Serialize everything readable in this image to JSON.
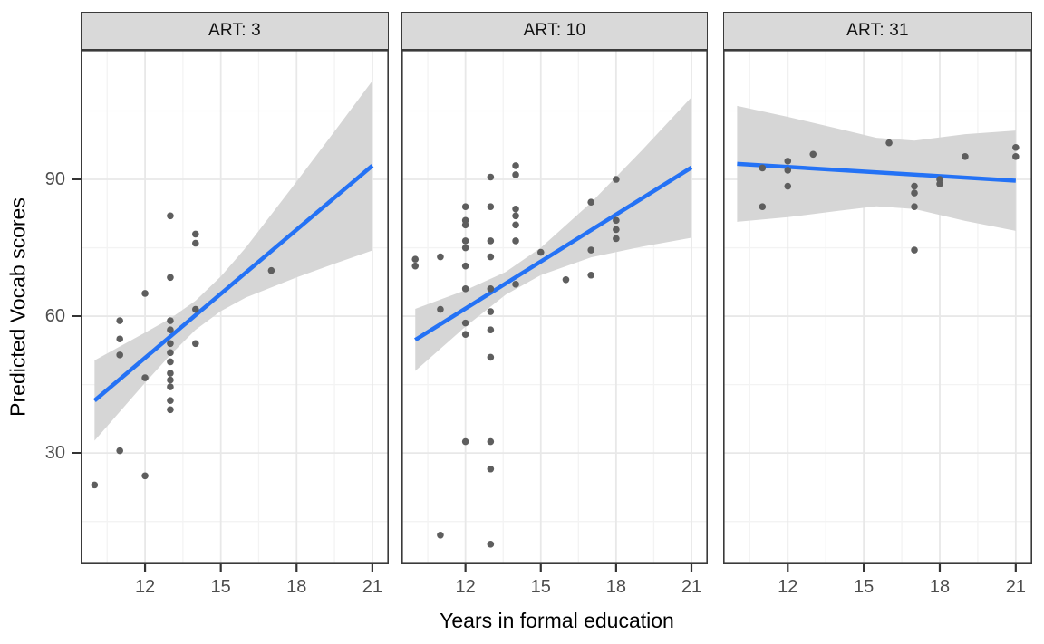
{
  "chart_data": {
    "type": "scatter",
    "subtype": "faceted scatter with linear smooth and confidence band (ggplot style)",
    "title": "",
    "xlabel": "Years in formal education",
    "ylabel": "Predicted Vocab scores",
    "facet_variable": "ART",
    "x_domain": [
      9.45,
      21.65
    ],
    "y_domain": [
      5.6,
      118.4
    ],
    "x_ticks": [
      12,
      15,
      18,
      21
    ],
    "x_minor_ticks": [
      10.5,
      13.5,
      16.5,
      19.5
    ],
    "y_ticks": [
      30,
      60,
      90
    ],
    "y_minor_ticks": [
      15,
      45,
      75,
      105
    ],
    "grid": true,
    "legend": "none",
    "colors": {
      "smooth_line": "#2472f5",
      "ci_band": "#d6d6d6",
      "points": "#5e5e5e",
      "strip_bg": "#d9d9d9",
      "grid_major": "#e8e8e8",
      "grid_minor": "#f3f3f3",
      "border": "#3a3a3a",
      "axis_tick": "#333333",
      "tick_label": "#4d4d4d",
      "title_text": "#000000"
    },
    "facets": [
      {
        "label": "ART: 3",
        "art_value": 3,
        "points": [
          [
            10,
            23
          ],
          [
            11,
            30.5
          ],
          [
            11,
            51.5
          ],
          [
            11,
            55
          ],
          [
            11,
            59
          ],
          [
            12,
            25
          ],
          [
            12,
            46.5
          ],
          [
            12,
            65
          ],
          [
            13,
            39.5
          ],
          [
            13,
            41.5
          ],
          [
            13,
            44.5
          ],
          [
            13,
            46
          ],
          [
            13,
            47.5
          ],
          [
            13,
            50
          ],
          [
            13,
            52
          ],
          [
            13,
            54
          ],
          [
            13,
            57
          ],
          [
            13,
            59
          ],
          [
            13,
            68.5
          ],
          [
            13,
            82
          ],
          [
            14,
            54
          ],
          [
            14,
            61.5
          ],
          [
            14,
            76
          ],
          [
            14,
            78
          ],
          [
            17,
            70
          ]
        ],
        "smooth_line": {
          "x": [
            10,
            21
          ],
          "y": [
            41.5,
            93
          ]
        },
        "ci_band": [
          [
            10,
            32.7,
            50.3
          ],
          [
            12,
            45.4,
            56.4
          ],
          [
            13,
            51.5,
            59.5
          ],
          [
            14,
            57,
            63.4
          ],
          [
            15,
            61.1,
            68.7
          ],
          [
            16,
            64.1,
            75.1
          ],
          [
            18,
            68.5,
            89.5
          ],
          [
            19.5,
            71.5,
            100.5
          ],
          [
            21,
            74.4,
            111.6
          ]
        ]
      },
      {
        "label": "ART: 10",
        "art_value": 10,
        "points": [
          [
            10,
            71
          ],
          [
            10,
            72.5
          ],
          [
            11,
            12
          ],
          [
            11,
            61.5
          ],
          [
            11,
            73
          ],
          [
            12,
            32.5
          ],
          [
            12,
            56
          ],
          [
            12,
            58.5
          ],
          [
            12,
            66
          ],
          [
            12,
            71
          ],
          [
            12,
            75
          ],
          [
            12,
            76.5
          ],
          [
            12,
            80
          ],
          [
            12,
            81
          ],
          [
            12,
            84
          ],
          [
            13,
            10
          ],
          [
            13,
            26.5
          ],
          [
            13,
            32.5
          ],
          [
            13,
            51
          ],
          [
            13,
            57
          ],
          [
            13,
            61
          ],
          [
            13,
            66
          ],
          [
            13,
            73
          ],
          [
            13,
            76.5
          ],
          [
            13,
            84
          ],
          [
            13,
            90.5
          ],
          [
            14,
            67
          ],
          [
            14,
            76.5
          ],
          [
            14,
            80
          ],
          [
            14,
            82
          ],
          [
            14,
            83.5
          ],
          [
            14,
            91
          ],
          [
            14,
            93
          ],
          [
            15,
            74
          ],
          [
            16,
            68
          ],
          [
            17,
            69
          ],
          [
            17,
            74.5
          ],
          [
            17,
            85
          ],
          [
            18,
            77
          ],
          [
            18,
            79
          ],
          [
            18,
            81
          ],
          [
            18,
            90
          ]
        ],
        "smooth_line": {
          "x": [
            10,
            21
          ],
          "y": [
            54.8,
            92.6
          ]
        },
        "ci_band": [
          [
            10,
            48,
            61.6
          ],
          [
            12,
            57.7,
            65.7
          ],
          [
            13.6,
            64.7,
            69.7
          ],
          [
            15,
            69,
            75
          ],
          [
            17,
            72.9,
            84.9
          ],
          [
            19,
            75.2,
            96.2
          ],
          [
            21,
            77.2,
            108
          ]
        ]
      },
      {
        "label": "ART: 31",
        "art_value": 31,
        "points": [
          [
            11,
            84
          ],
          [
            11,
            92.5
          ],
          [
            12,
            88.5
          ],
          [
            12,
            92
          ],
          [
            12,
            94
          ],
          [
            13,
            95.5
          ],
          [
            16,
            98
          ],
          [
            17,
            74.5
          ],
          [
            17,
            84
          ],
          [
            17,
            87
          ],
          [
            17,
            88.5
          ],
          [
            18,
            89
          ],
          [
            18,
            90
          ],
          [
            19,
            95
          ],
          [
            21,
            95
          ],
          [
            21,
            97
          ]
        ],
        "smooth_line": {
          "x": [
            10,
            21
          ],
          "y": [
            93.4,
            89.7
          ]
        },
        "ci_band": [
          [
            10,
            80.7,
            106.1
          ],
          [
            12,
            81.7,
            103.7
          ],
          [
            14,
            83.1,
            101.1
          ],
          [
            15.5,
            84.1,
            99.1
          ],
          [
            17,
            83.5,
            98.5
          ],
          [
            19,
            80.9,
            99.9
          ],
          [
            21,
            78.7,
            100.7
          ]
        ]
      }
    ]
  }
}
